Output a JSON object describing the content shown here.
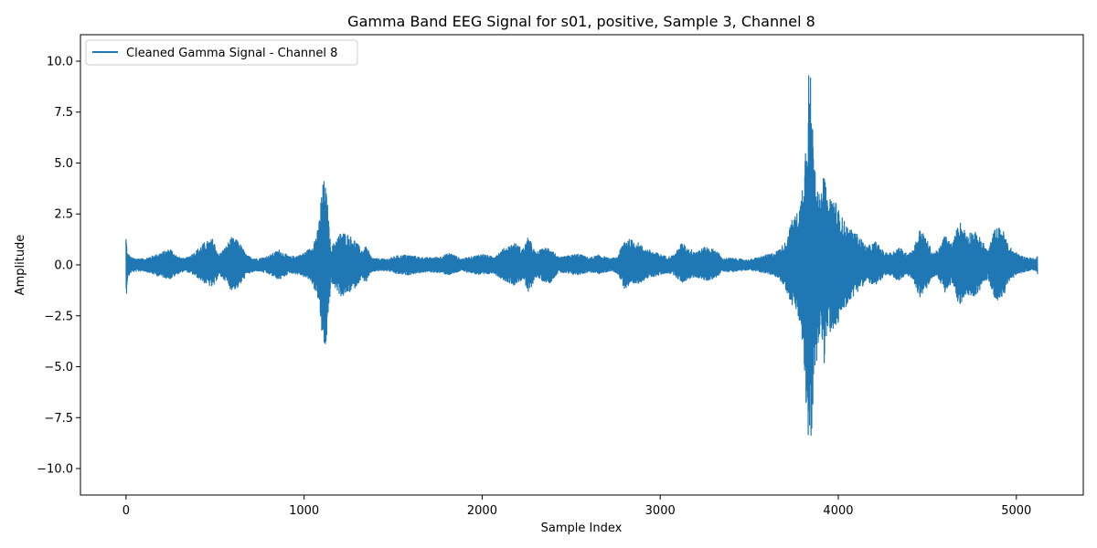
{
  "chart_data": {
    "type": "line",
    "title": "Gamma Band EEG Signal for s01, positive, Sample 3, Channel 8",
    "xlabel": "Sample Index",
    "ylabel": "Amplitude",
    "xlim": [
      -256,
      5376
    ],
    "ylim": [
      -11.3,
      11.3
    ],
    "xticks": [
      0,
      1000,
      2000,
      3000,
      4000,
      5000
    ],
    "xtick_labels": [
      "0",
      "1000",
      "2000",
      "3000",
      "4000",
      "5000"
    ],
    "yticks": [
      -10.0,
      -7.5,
      -5.0,
      -2.5,
      0.0,
      2.5,
      5.0,
      7.5,
      10.0
    ],
    "ytick_labels": [
      "−10.0",
      "−7.5",
      "−5.0",
      "−2.5",
      "0.0",
      "2.5",
      "5.0",
      "7.5",
      "10.0"
    ],
    "grid": false,
    "legend_position": "top-left",
    "series": [
      {
        "name": "Cleaned Gamma Signal - Channel 8",
        "color": "#1f77b4",
        "num_samples": 5120,
        "envelope": {
          "x": [
            0,
            8,
            30,
            100,
            180,
            250,
            290,
            330,
            380,
            440,
            490,
            520,
            560,
            590,
            630,
            680,
            740,
            800,
            860,
            920,
            980,
            1040,
            1080,
            1100,
            1115,
            1130,
            1150,
            1180,
            1210,
            1250,
            1290,
            1320,
            1350,
            1380,
            1420,
            1470,
            1520,
            1580,
            1640,
            1700,
            1760,
            1820,
            1880,
            1940,
            2000,
            2060,
            2120,
            2180,
            2230,
            2260,
            2300,
            2340,
            2380,
            2430,
            2480,
            2540,
            2600,
            2660,
            2720,
            2760,
            2800,
            2860,
            2920,
            2980,
            3040,
            3080,
            3120,
            3160,
            3200,
            3260,
            3320,
            3350,
            3380,
            3440,
            3500,
            3560,
            3620,
            3660,
            3700,
            3740,
            3770,
            3790,
            3810,
            3825,
            3835,
            3845,
            3860,
            3880,
            3900,
            3920,
            3940,
            3960,
            3980,
            4010,
            4060,
            4110,
            4160,
            4210,
            4260,
            4300,
            4340,
            4380,
            4420,
            4460,
            4500,
            4530,
            4560,
            4600,
            4640,
            4680,
            4720,
            4760,
            4800,
            4840,
            4880,
            4920,
            4960,
            5000,
            5040,
            5080,
            5110,
            5120
          ],
          "pos": [
            1.5,
            0.6,
            0.35,
            0.3,
            0.55,
            0.8,
            0.4,
            0.3,
            0.6,
            1.1,
            1.3,
            0.5,
            0.9,
            1.35,
            1.2,
            0.45,
            0.3,
            0.45,
            0.75,
            0.4,
            0.5,
            0.85,
            1.8,
            3.8,
            4.25,
            3.2,
            0.8,
            1.3,
            1.65,
            1.5,
            1.2,
            0.75,
            0.9,
            0.35,
            0.3,
            0.3,
            0.45,
            0.5,
            0.4,
            0.35,
            0.4,
            0.6,
            0.3,
            0.4,
            0.55,
            0.4,
            0.8,
            1.1,
            0.8,
            1.4,
            0.6,
            0.8,
            0.9,
            0.35,
            0.45,
            0.55,
            0.35,
            0.5,
            0.3,
            0.4,
            1.3,
            1.2,
            0.8,
            0.6,
            0.4,
            0.5,
            1.1,
            0.8,
            0.7,
            0.9,
            0.7,
            0.3,
            0.35,
            0.3,
            0.25,
            0.4,
            0.55,
            0.7,
            1.1,
            2.2,
            2.6,
            3.2,
            5.3,
            7.5,
            10.0,
            9.2,
            6.2,
            4.5,
            3.0,
            4.7,
            3.0,
            3.6,
            3.3,
            2.5,
            1.8,
            1.5,
            0.9,
            1.15,
            0.6,
            0.6,
            0.9,
            0.6,
            0.75,
            1.8,
            1.2,
            0.6,
            0.7,
            1.5,
            1.0,
            2.2,
            1.6,
            1.7,
            1.3,
            0.7,
            1.8,
            1.85,
            0.9,
            0.6,
            0.4,
            0.35,
            0.3,
            0.5,
            1.8
          ],
          "neg": [
            -1.8,
            -0.7,
            -0.35,
            -0.3,
            -0.55,
            -0.7,
            -0.45,
            -0.3,
            -0.5,
            -0.9,
            -1.15,
            -0.5,
            -0.8,
            -1.25,
            -1.15,
            -0.45,
            -0.3,
            -0.45,
            -0.75,
            -0.4,
            -0.5,
            -0.8,
            -1.7,
            -3.5,
            -4.3,
            -3.6,
            -0.9,
            -1.2,
            -1.6,
            -1.4,
            -1.1,
            -0.7,
            -0.85,
            -0.35,
            -0.3,
            -0.3,
            -0.45,
            -0.5,
            -0.4,
            -0.35,
            -0.4,
            -0.5,
            -0.3,
            -0.4,
            -0.55,
            -0.4,
            -0.75,
            -1.0,
            -0.7,
            -1.45,
            -0.6,
            -0.8,
            -0.9,
            -0.35,
            -0.45,
            -0.5,
            -0.35,
            -0.45,
            -0.3,
            -0.4,
            -1.2,
            -1.0,
            -0.7,
            -0.55,
            -0.4,
            -0.5,
            -0.9,
            -0.7,
            -0.6,
            -0.8,
            -0.6,
            -0.3,
            -0.35,
            -0.3,
            -0.25,
            -0.35,
            -0.5,
            -0.6,
            -1.1,
            -2.0,
            -2.4,
            -3.3,
            -5.3,
            -8.0,
            -10.1,
            -9.6,
            -6.5,
            -4.6,
            -3.0,
            -5.0,
            -3.2,
            -3.4,
            -3.4,
            -2.6,
            -1.8,
            -1.3,
            -0.8,
            -1.1,
            -0.5,
            -0.6,
            -0.8,
            -0.5,
            -0.7,
            -1.7,
            -1.1,
            -0.6,
            -0.6,
            -1.4,
            -0.9,
            -2.1,
            -1.4,
            -1.6,
            -1.2,
            -0.65,
            -1.7,
            -1.75,
            -0.8,
            -0.5,
            -0.35,
            -0.3,
            -0.3,
            -0.5,
            -1.2
          ]
        }
      }
    ]
  }
}
